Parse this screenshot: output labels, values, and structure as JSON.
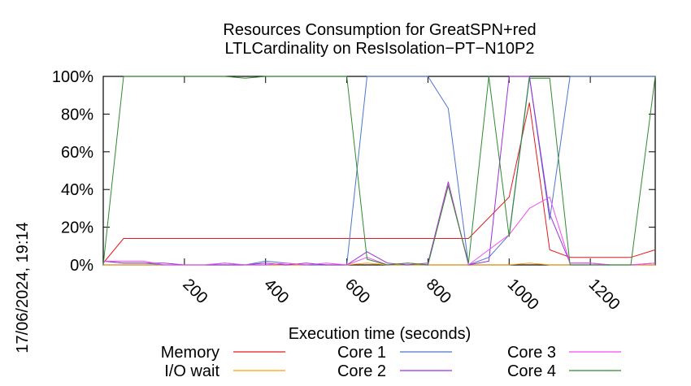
{
  "chart_data": {
    "type": "line",
    "title": [
      "Resources Consumption for GreatSPN+red",
      "LTLCardinality on ResIsolation−PT−N10P2"
    ],
    "xlabel": "Execution time (seconds)",
    "ylabel": "",
    "side_label": "17/06/2024, 19:14",
    "xlim": [
      0,
      1360
    ],
    "ylim": [
      0,
      100
    ],
    "xticks": [
      200,
      400,
      600,
      800,
      1000,
      1200
    ],
    "yticks": [
      0,
      20,
      40,
      60,
      80,
      100
    ],
    "ytick_labels": [
      "0%",
      "20%",
      "40%",
      "60%",
      "80%",
      "100%"
    ],
    "grid": false,
    "legend_position": "bottom",
    "series": [
      {
        "name": "Memory",
        "color": "#e41a1c",
        "x": [
          0,
          50,
          100,
          200,
          300,
          400,
          500,
          600,
          700,
          800,
          900,
          1000,
          1050,
          1100,
          1150,
          1200,
          1250,
          1300,
          1360
        ],
        "y": [
          1,
          14,
          14,
          14,
          14,
          14,
          14,
          14,
          14,
          14,
          14,
          36,
          86,
          8,
          4,
          4,
          4,
          4,
          8
        ]
      },
      {
        "name": "I/O wait",
        "color": "#ff9f00",
        "x": [
          0,
          100,
          200,
          300,
          400,
          500,
          600,
          650,
          700,
          800,
          900,
          1000,
          1050,
          1100,
          1200,
          1360
        ],
        "y": [
          0,
          0,
          0,
          0,
          0,
          0,
          0,
          1,
          0,
          0,
          0,
          0,
          1,
          0,
          0,
          0
        ]
      },
      {
        "name": "Core 1",
        "color": "#4d74cf",
        "x": [
          0,
          50,
          100,
          150,
          200,
          250,
          300,
          350,
          400,
          450,
          500,
          550,
          600,
          650,
          700,
          750,
          800,
          850,
          900,
          950,
          1000,
          1050,
          1100,
          1150,
          1200,
          1250,
          1300,
          1360
        ],
        "y": [
          2,
          1,
          1,
          0,
          0,
          0,
          1,
          0,
          2,
          1,
          0,
          0,
          0,
          100,
          100,
          100,
          100,
          83,
          0,
          4,
          16,
          100,
          24,
          100,
          100,
          100,
          100,
          100
        ]
      },
      {
        "name": "Core 2",
        "color": "#9b30d9",
        "x": [
          0,
          50,
          100,
          150,
          200,
          250,
          300,
          350,
          400,
          450,
          500,
          550,
          600,
          650,
          700,
          750,
          800,
          850,
          900,
          950,
          1000,
          1050,
          1100,
          1150,
          1200,
          1250,
          1300,
          1360
        ],
        "y": [
          2,
          1,
          1,
          1,
          0,
          0,
          0,
          0,
          1,
          0,
          1,
          0,
          0,
          7,
          1,
          0,
          1,
          44,
          0,
          2,
          100,
          100,
          27,
          1,
          1,
          0,
          0,
          1
        ]
      },
      {
        "name": "Core 3",
        "color": "#f04cf2",
        "x": [
          0,
          50,
          100,
          150,
          200,
          250,
          300,
          350,
          400,
          450,
          500,
          550,
          600,
          650,
          700,
          750,
          800,
          850,
          900,
          950,
          1000,
          1050,
          1100,
          1150,
          1200,
          1250,
          1300,
          1360
        ],
        "y": [
          2,
          2,
          2,
          0,
          0,
          0,
          1,
          0,
          0,
          1,
          0,
          1,
          0,
          4,
          0,
          1,
          0,
          43,
          0,
          8,
          16,
          30,
          36,
          1,
          1,
          0,
          0,
          1
        ]
      },
      {
        "name": "Core 4",
        "color": "#2e8b2e",
        "x": [
          0,
          50,
          100,
          200,
          300,
          350,
          400,
          500,
          600,
          650,
          700,
          750,
          800,
          850,
          900,
          950,
          1000,
          1050,
          1100,
          1150,
          1200,
          1250,
          1300,
          1360
        ],
        "y": [
          0,
          100,
          100,
          100,
          100,
          99,
          100,
          100,
          100,
          3,
          0,
          1,
          0,
          42,
          1,
          100,
          15,
          99,
          99,
          0,
          0,
          0,
          0,
          100
        ]
      }
    ]
  }
}
